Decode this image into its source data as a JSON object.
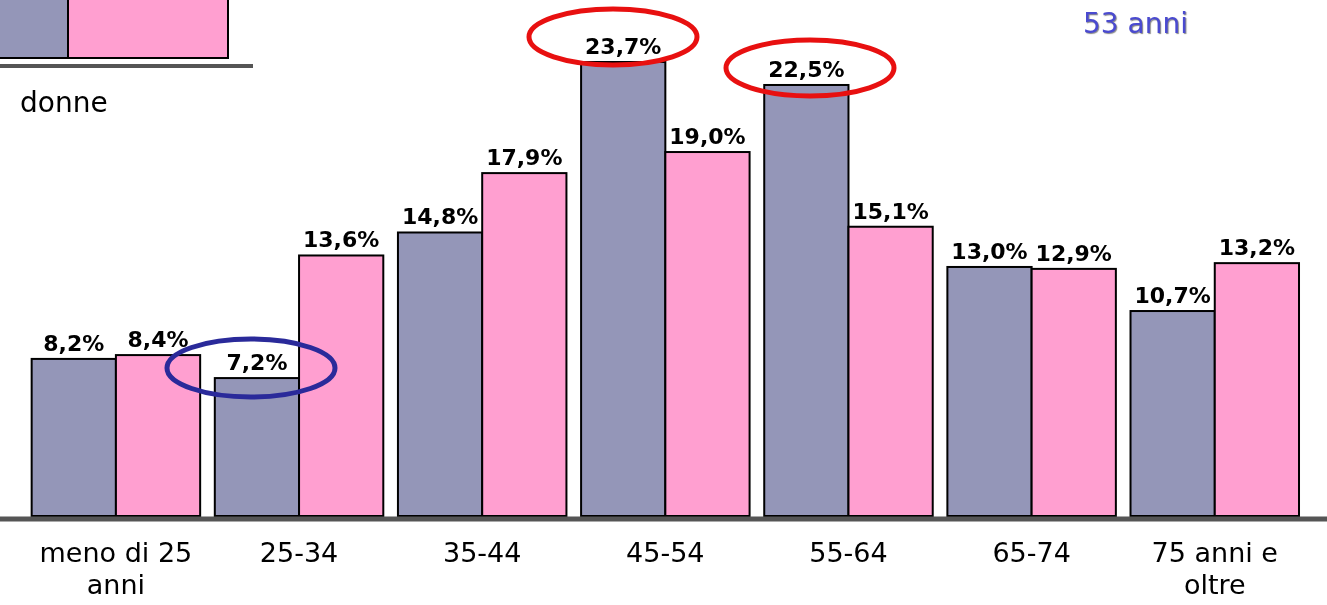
{
  "chart_data": {
    "type": "bar",
    "categories": [
      "meno di 25 anni",
      "25-34",
      "35-44",
      "45-54",
      "55-64",
      "65-74",
      "75 anni e oltre"
    ],
    "series": [
      {
        "color": "#9496b8",
        "values": [
          8.2,
          7.2,
          14.8,
          23.7,
          22.5,
          13.0,
          10.7
        ],
        "value_labels": [
          "8,2%",
          "7,2%",
          "14,8%",
          "23,7%",
          "22,5%",
          "13,0%",
          "10,7%"
        ]
      },
      {
        "color": "#ff9fd0",
        "values": [
          8.4,
          13.6,
          17.9,
          19.0,
          15.1,
          12.9,
          13.2
        ],
        "value_labels": [
          "8,4%",
          "13,6%",
          "17,9%",
          "19,0%",
          "15,1%",
          "12,9%",
          "13,2%"
        ]
      }
    ],
    "annotations": [
      "donne",
      "53 anni"
    ],
    "grid": false
  }
}
